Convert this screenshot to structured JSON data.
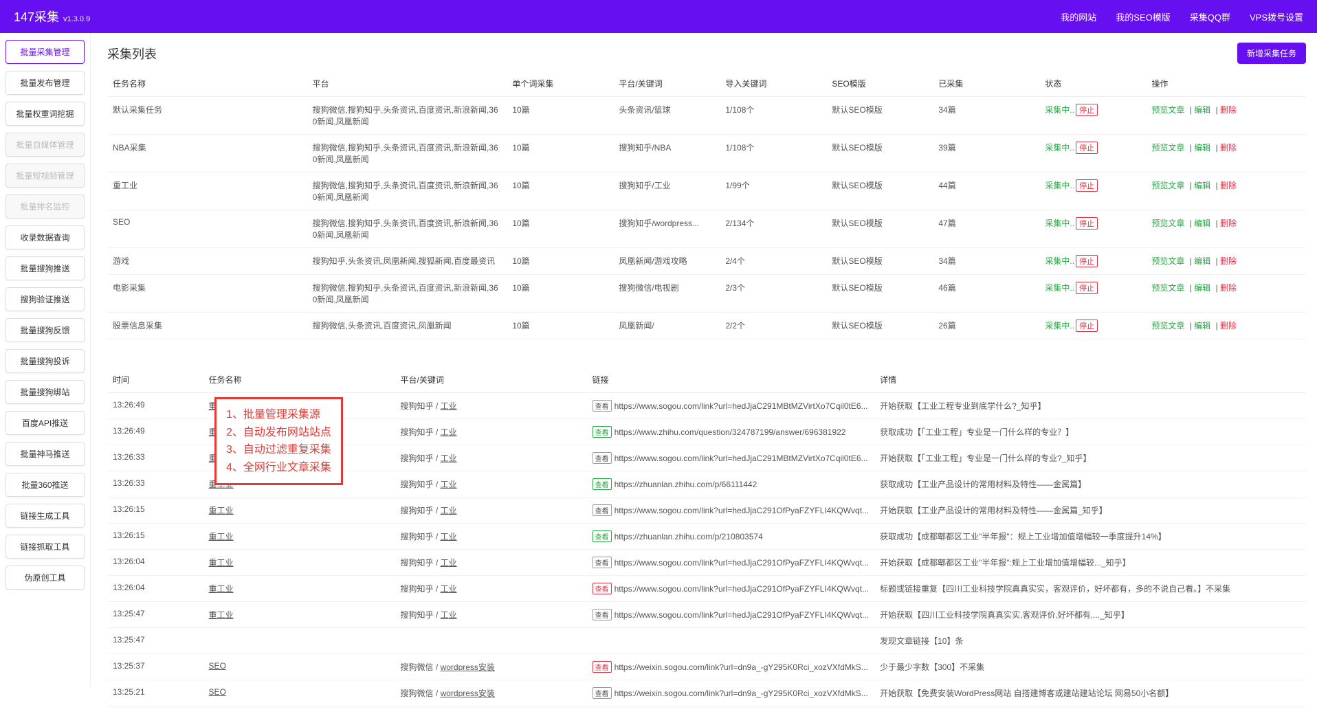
{
  "brand": {
    "name": "147采集",
    "version": "v1.3.0.9"
  },
  "topnav": [
    {
      "label": "我的网站"
    },
    {
      "label": "我的SEO模版"
    },
    {
      "label": "采集QQ群"
    },
    {
      "label": "VPS拨号设置"
    }
  ],
  "sidebar": [
    {
      "label": "批量采集管理",
      "state": "active"
    },
    {
      "label": "批量发布管理",
      "state": ""
    },
    {
      "label": "批量权重词挖掘",
      "state": ""
    },
    {
      "label": "批量自媒体管理",
      "state": "disabled"
    },
    {
      "label": "批量短视频管理",
      "state": "disabled"
    },
    {
      "label": "批量排名监控",
      "state": "disabled"
    },
    {
      "label": "收录数据查询",
      "state": ""
    },
    {
      "label": "批量搜狗推送",
      "state": ""
    },
    {
      "label": "搜狗验证推送",
      "state": ""
    },
    {
      "label": "批量搜狗反馈",
      "state": ""
    },
    {
      "label": "批量搜狗投诉",
      "state": ""
    },
    {
      "label": "批量搜狗绑站",
      "state": ""
    },
    {
      "label": "百度API推送",
      "state": ""
    },
    {
      "label": "批量神马推送",
      "state": ""
    },
    {
      "label": "批量360推送",
      "state": ""
    },
    {
      "label": "链接生成工具",
      "state": ""
    },
    {
      "label": "链接抓取工具",
      "state": ""
    },
    {
      "label": "伪原创工具",
      "state": ""
    }
  ],
  "taskList": {
    "title": "采集列表",
    "newBtn": "新增采集任务",
    "headers": [
      "任务名称",
      "平台",
      "单个词采集",
      "平台/关键词",
      "导入关键词",
      "SEO模版",
      "已采集",
      "状态",
      "操作"
    ],
    "statusLabel": "采集中..",
    "stopLabel": "停止",
    "actions": {
      "preview": "预览文章",
      "edit": "编辑",
      "delete": "删除"
    },
    "rows": [
      {
        "name": "默认采集任务",
        "platform": "搜狗微信,搜狗知乎,头条资讯,百度资讯,新浪新闻,360新闻,凤凰新闻",
        "per": "10篇",
        "pk": "头条资讯/篮球",
        "kw": "1/108个",
        "tpl": "默认SEO模版",
        "cnt": "34篇"
      },
      {
        "name": "NBA采集",
        "platform": "搜狗微信,搜狗知乎,头条资讯,百度资讯,新浪新闻,360新闻,凤凰新闻",
        "per": "10篇",
        "pk": "搜狗知乎/NBA",
        "kw": "1/108个",
        "tpl": "默认SEO模版",
        "cnt": "39篇"
      },
      {
        "name": "重工业",
        "platform": "搜狗微信,搜狗知乎,头条资讯,百度资讯,新浪新闻,360新闻,凤凰新闻",
        "per": "10篇",
        "pk": "搜狗知乎/工业",
        "kw": "1/99个",
        "tpl": "默认SEO模版",
        "cnt": "44篇"
      },
      {
        "name": "SEO",
        "platform": "搜狗微信,搜狗知乎,头条资讯,百度资讯,新浪新闻,360新闻,凤凰新闻",
        "per": "10篇",
        "pk": "搜狗知乎/wordpress...",
        "kw": "2/134个",
        "tpl": "默认SEO模版",
        "cnt": "47篇"
      },
      {
        "name": "游戏",
        "platform": "搜狗知乎,头条资讯,凤凰新闻,搜狐新闻,百度最资讯",
        "per": "10篇",
        "pk": "凤凰新闻/游戏攻略",
        "kw": "2/4个",
        "tpl": "默认SEO模版",
        "cnt": "34篇"
      },
      {
        "name": "电影采集",
        "platform": "搜狗微信,搜狗知乎,头条资讯,百度资讯,新浪新闻,360新闻,凤凰新闻",
        "per": "10篇",
        "pk": "搜狗微信/电视剧",
        "kw": "2/3个",
        "tpl": "默认SEO模版",
        "cnt": "46篇"
      },
      {
        "name": "股票信息采集",
        "platform": "搜狗微信,头条资讯,百度资讯,凤凰新闻",
        "per": "10篇",
        "pk": "凤凰新闻/",
        "kw": "2/2个",
        "tpl": "默认SEO模版",
        "cnt": "26篇"
      }
    ]
  },
  "logList": {
    "headers": [
      "时间",
      "任务名称",
      "平台/关键词",
      "链接",
      "详情"
    ],
    "badge": "查看",
    "rows": [
      {
        "cls": "",
        "time": "13:26:49",
        "task": "重工业",
        "pkA": "搜狗知乎",
        "pkB": "工业",
        "url": "https://www.sogou.com/link?url=hedJjaC291MBtMZVirtXo7Cqil0tE6...",
        "detail": "开始获取【工业工程专业到底学什么?_知乎】"
      },
      {
        "cls": "row-green",
        "time": "13:26:49",
        "task": "重工业",
        "pkA": "搜狗知乎",
        "pkB": "工业",
        "url": "https://www.zhihu.com/question/324787199/answer/696381922",
        "detail": "获取成功【「工业工程」专业是一门什么样的专业？】"
      },
      {
        "cls": "",
        "time": "13:26:33",
        "task": "重工业",
        "pkA": "搜狗知乎",
        "pkB": "工业",
        "url": "https://www.sogou.com/link?url=hedJjaC291MBtMZVirtXo7Cqil0tE6...",
        "detail": "开始获取【「工业工程」专业是一门什么样的专业?_知乎】"
      },
      {
        "cls": "row-green",
        "time": "13:26:33",
        "task": "重工业",
        "pkA": "搜狗知乎",
        "pkB": "工业",
        "url": "https://zhuanlan.zhihu.com/p/66111442",
        "detail": "获取成功【工业产品设计的常用材料及特性——金属篇】"
      },
      {
        "cls": "",
        "time": "13:26:15",
        "task": "重工业",
        "pkA": "搜狗知乎",
        "pkB": "工业",
        "url": "https://www.sogou.com/link?url=hedJjaC291OfPyaFZYFLI4KQWvqt...",
        "detail": "开始获取【工业产品设计的常用材料及特性——金属篇_知乎】"
      },
      {
        "cls": "row-green",
        "time": "13:26:15",
        "task": "重工业",
        "pkA": "搜狗知乎",
        "pkB": "工业",
        "url": "https://zhuanlan.zhihu.com/p/210803574",
        "detail": "获取成功【成都郫都区工业\"半年报\"：规上工业增加值增幅较一季度提升14%】"
      },
      {
        "cls": "",
        "time": "13:26:04",
        "task": "重工业",
        "pkA": "搜狗知乎",
        "pkB": "工业",
        "url": "https://www.sogou.com/link?url=hedJjaC291OfPyaFZYFLI4KQWvqt...",
        "detail": "开始获取【成都郫都区工业\"半年报\":规上工业增加值增幅较..._知乎】"
      },
      {
        "cls": "row-red",
        "time": "13:26:04",
        "task": "重工业",
        "pkA": "搜狗知乎",
        "pkB": "工业",
        "url": "https://www.sogou.com/link?url=hedJjaC291OfPyaFZYFLI4KQWvqt...",
        "detail": "标题或链接重复【四川工业科技学院真真实实，客观评价，好坏都有，多的不说自己看。】不采集"
      },
      {
        "cls": "",
        "time": "13:25:47",
        "task": "重工业",
        "pkA": "搜狗知乎",
        "pkB": "工业",
        "url": "https://www.sogou.com/link?url=hedJjaC291OfPyaFZYFLI4KQWvqt...",
        "detail": "开始获取【四川工业科技学院真真实实,客观评价,好坏都有,..._知乎】"
      },
      {
        "cls": "",
        "time": "13:25:47",
        "task": "",
        "pkA": "",
        "pkB": "",
        "url": "",
        "detail": "发现文章链接【10】条"
      },
      {
        "cls": "row-red",
        "time": "13:25:37",
        "task": "SEO",
        "pkA": "搜狗微信",
        "pkB": "wordpress安装",
        "url": "https://weixin.sogou.com/link?url=dn9a_-gY295K0Rci_xozVXfdMkS...",
        "detail": "少于最少字数【300】不采集"
      },
      {
        "cls": "",
        "time": "13:25:21",
        "task": "SEO",
        "pkA": "搜狗微信",
        "pkB": "wordpress安装",
        "url": "https://weixin.sogou.com/link?url=dn9a_-gY295K0Rci_xozVXfdMkS...",
        "detail": "开始获取【免费安装WordPress网站 自搭建博客或建站建站论坛 网易50小名额】"
      }
    ]
  },
  "overlay": {
    "lines": [
      "1、批量管理采集源",
      "2、自动发布网站站点",
      "3、自动过滤重复采集",
      "4、全网行业文章采集"
    ]
  },
  "colors": {
    "primary": "#6610f2",
    "success": "#28a745",
    "danger": "#dc3545",
    "overlayBorder": "#e53935"
  }
}
